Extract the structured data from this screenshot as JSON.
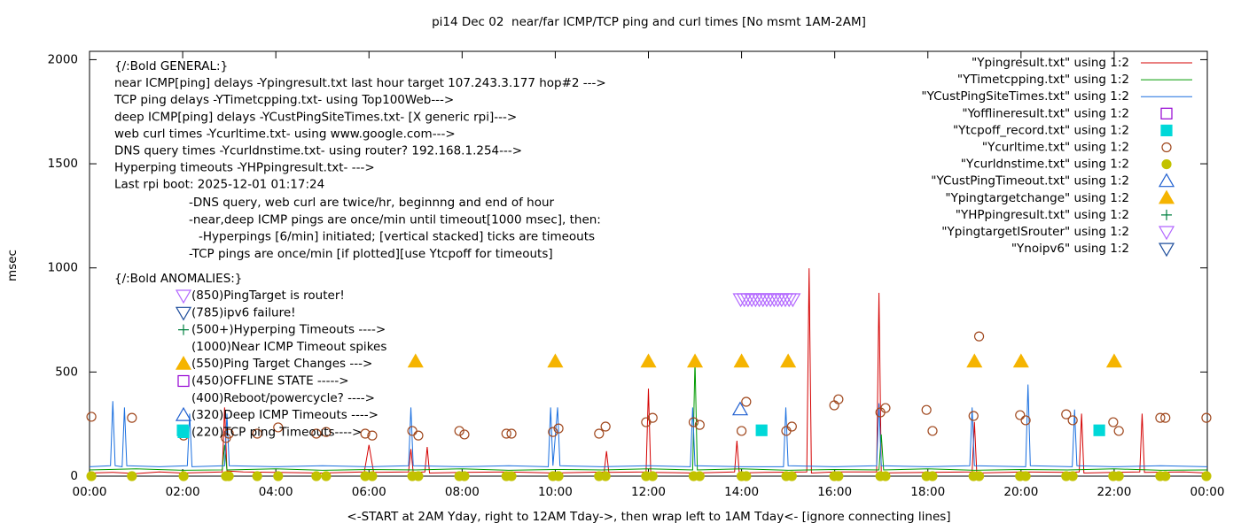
{
  "chart_data": {
    "type": "line",
    "title": "pi14 Dec 02  near/far ICMP/TCP ping and curl times [No msmt 1AM-2AM]",
    "xlabel": "<-START at 2AM Yday, right to 12AM Tday->, then wrap left to 1AM Tday<- [ignore connecting lines]",
    "ylabel": "msec",
    "xlim": [
      0,
      24
    ],
    "ylim": [
      0,
      2040
    ],
    "xticks": [
      {
        "value": 0,
        "label": "00:00"
      },
      {
        "value": 2,
        "label": "02:00"
      },
      {
        "value": 4,
        "label": "04:00"
      },
      {
        "value": 6,
        "label": "06:00"
      },
      {
        "value": 8,
        "label": "08:00"
      },
      {
        "value": 10,
        "label": "10:00"
      },
      {
        "value": 12,
        "label": "12:00"
      },
      {
        "value": 14,
        "label": "14:00"
      },
      {
        "value": 16,
        "label": "16:00"
      },
      {
        "value": 18,
        "label": "18:00"
      },
      {
        "value": 20,
        "label": "20:00"
      },
      {
        "value": 22,
        "label": "22:00"
      },
      {
        "value": 24,
        "label": "00:00"
      }
    ],
    "yticks": [
      0,
      500,
      1000,
      1500,
      2000
    ],
    "grid": false,
    "legend": "top-right",
    "general_notes": [
      "{/:Bold GENERAL:}",
      "near ICMP[ping] delays -Ypingresult.txt last hour target 107.243.3.177 hop#2 --->",
      "TCP ping delays -YTimetcpping.txt- using Top100Web--->",
      "deep ICMP[ping] delays -YCustPingSiteTimes.txt- [X generic rpi]--->",
      "web curl times -Ycurltime.txt- using www.google.com--->",
      "DNS query times -Ycurldnstime.txt- using router? 192.168.1.254--->",
      "Hyperping timeouts -YHPpingresult.txt- --->",
      "Last rpi boot: 2025-12-01 01:17:24"
    ],
    "schedule_notes": [
      "-DNS query, web curl are twice/hr, beginnng and end of hour",
      "-near,deep ICMP pings are once/min until timeout[1000 msec], then:",
      "-Hyperpings [6/min] initiated; [vertical stacked] ticks are timeouts",
      "-TCP pings are once/min [if plotted][use Ytcpoff for timeouts]"
    ],
    "anomalies_heading": "{/:Bold ANOMALIES:}",
    "anomaly_notes": [
      {
        "text": "(850)PingTarget is router!",
        "marker": "triangle-down-open",
        "color": "#b266ff"
      },
      {
        "text": "(785)ipv6 failure!",
        "marker": "triangle-down-open",
        "color": "#1f4e9c"
      },
      {
        "text": "(500+)Hyperping Timeouts ---->",
        "marker": "plus",
        "color": "#008040"
      },
      {
        "text": "(1000)Near ICMP Timeout spikes"
      },
      {
        "text": "(550)Ping Target Changes --->",
        "marker": "triangle-filled",
        "color": "#f5b400"
      },
      {
        "text": "(450)OFFLINE STATE ----->",
        "marker": "square-open",
        "color": "#9400d3"
      },
      {
        "text": "(400)Reboot/powercycle? ---->"
      },
      {
        "text": "(320)Deep ICMP Timeouts ---->",
        "marker": "triangle-open",
        "color": "#1f5fd0"
      },
      {
        "text": "(220)TCP ping Timeouts---->",
        "marker": "square-filled",
        "color": "#00d8d8"
      }
    ],
    "series": [
      {
        "name": "\"Ypingresult.txt\" using 1:2",
        "style": "line",
        "color": "#d40000",
        "x": [
          0,
          0.5,
          1.0,
          1.5,
          2.0,
          2.5,
          2.85,
          2.9,
          2.95,
          3.3,
          4.0,
          5.0,
          5.9,
          6.0,
          6.1,
          6.85,
          6.9,
          6.95,
          7.2,
          7.25,
          7.3,
          8.0,
          9.0,
          10.0,
          11.05,
          11.1,
          11.15,
          11.95,
          12.0,
          12.05,
          13.0,
          13.85,
          13.9,
          13.95,
          14.5,
          15.4,
          15.45,
          15.5,
          16.0,
          16.9,
          16.95,
          17.0,
          18.0,
          18.95,
          19.0,
          19.05,
          20.0,
          21.0,
          21.25,
          21.3,
          21.35,
          22.0,
          22.55,
          22.6,
          22.65,
          23.5,
          24.0
        ],
        "values": [
          15,
          18,
          12,
          20,
          15,
          18,
          20,
          330,
          25,
          20,
          18,
          15,
          20,
          150,
          18,
          20,
          130,
          18,
          20,
          140,
          15,
          18,
          20,
          15,
          20,
          120,
          18,
          20,
          420,
          18,
          15,
          20,
          170,
          15,
          18,
          20,
          998,
          15,
          20,
          20,
          880,
          15,
          18,
          20,
          260,
          15,
          20,
          18,
          20,
          300,
          15,
          18,
          20,
          300,
          18,
          20,
          15
        ]
      },
      {
        "name": "\"YTimetcpping.txt\" using 1:2",
        "style": "line",
        "color": "#009a00",
        "x": [
          0,
          1,
          2,
          2.85,
          2.9,
          2.95,
          4,
          5,
          6,
          7,
          8,
          9,
          10,
          11,
          12,
          12.95,
          13.0,
          13.05,
          14,
          15,
          16,
          16.95,
          17.0,
          17.05,
          18,
          19,
          20,
          21,
          22,
          23,
          24
        ],
        "values": [
          30,
          35,
          28,
          30,
          150,
          30,
          35,
          28,
          32,
          30,
          35,
          28,
          32,
          30,
          35,
          30,
          555,
          30,
          35,
          28,
          32,
          30,
          200,
          30,
          35,
          28,
          32,
          30,
          35,
          28,
          30
        ]
      },
      {
        "name": "\"YCustPingSiteTimes.txt\" using 1:2",
        "style": "line",
        "color": "#1a6fdf",
        "x": [
          0,
          0.45,
          0.5,
          0.55,
          0.7,
          0.75,
          0.8,
          1.5,
          2.1,
          2.15,
          2.2,
          2.9,
          2.95,
          3.0,
          4,
          5,
          6,
          6.85,
          6.9,
          6.95,
          8,
          9,
          9.85,
          9.9,
          9.95,
          10.05,
          10.1,
          11,
          12,
          12.9,
          12.95,
          13.0,
          14,
          14.9,
          14.95,
          15.0,
          16,
          16.9,
          16.95,
          17.0,
          18,
          18.9,
          18.95,
          19.0,
          20.1,
          20.15,
          20.2,
          21.1,
          21.15,
          21.2,
          22,
          23,
          24
        ],
        "values": [
          45,
          50,
          360,
          50,
          45,
          330,
          50,
          45,
          50,
          300,
          45,
          50,
          300,
          50,
          45,
          50,
          45,
          50,
          330,
          50,
          45,
          50,
          45,
          330,
          50,
          330,
          50,
          45,
          50,
          45,
          330,
          50,
          45,
          45,
          330,
          50,
          45,
          50,
          350,
          50,
          45,
          50,
          330,
          50,
          45,
          440,
          50,
          45,
          320,
          50,
          45,
          50,
          45
        ]
      },
      {
        "name": "\"Yofflineresult.txt\" using 1:2",
        "style": "square-open",
        "color": "#9400d3",
        "x": [],
        "values": []
      },
      {
        "name": "\"Ytcpoff_record.txt\" using 1:2",
        "style": "square-filled",
        "color": "#00d8d8",
        "x": [
          2.0,
          14.43,
          21.68
        ],
        "values": [
          220,
          220,
          220
        ]
      },
      {
        "name": "\"Ycurltime.txt\" using 1:2",
        "style": "circle-open",
        "color": "#a0481e",
        "x": [
          0.04,
          0.91,
          2.02,
          2.93,
          2.99,
          3.6,
          4.05,
          4.87,
          5.08,
          5.92,
          6.07,
          6.93,
          7.06,
          7.94,
          8.05,
          8.95,
          9.06,
          9.95,
          10.07,
          10.94,
          11.08,
          11.95,
          12.09,
          12.97,
          13.1,
          14.0,
          14.1,
          14.96,
          15.08,
          15.99,
          16.08,
          16.98,
          17.09,
          17.97,
          18.1,
          18.98,
          19.1,
          19.98,
          20.1,
          20.97,
          21.11,
          21.98,
          22.1,
          22.99,
          23.1,
          23.98
        ],
        "values": [
          285,
          280,
          195,
          183,
          204,
          204,
          234,
          204,
          212,
          204,
          195,
          217,
          195,
          217,
          200,
          204,
          204,
          212,
          229,
          204,
          238,
          259,
          280,
          259,
          246,
          217,
          357,
          217,
          238,
          340,
          369,
          306,
          327,
          318,
          217,
          289,
          671,
          293,
          268,
          297,
          268,
          259,
          217,
          280,
          280,
          280
        ]
      },
      {
        "name": "\"Ycurldnstime.txt\" using 1:2",
        "style": "circle-filled",
        "color": "#c2c200",
        "x": [
          0.04,
          0.91,
          2.02,
          2.93,
          2.99,
          3.6,
          4.05,
          4.87,
          5.08,
          5.92,
          6.07,
          6.93,
          7.06,
          7.94,
          8.05,
          8.95,
          9.06,
          9.95,
          10.07,
          10.94,
          11.08,
          11.95,
          12.09,
          12.97,
          13.1,
          14.0,
          14.1,
          14.96,
          15.08,
          15.99,
          16.08,
          16.98,
          17.09,
          17.97,
          18.1,
          18.98,
          19.1,
          19.98,
          20.1,
          20.97,
          21.11,
          21.98,
          22.1,
          22.99,
          23.1,
          23.98
        ],
        "values": [
          0,
          0,
          0,
          0,
          0,
          0,
          0,
          0,
          0,
          0,
          0,
          0,
          0,
          0,
          0,
          0,
          0,
          0,
          0,
          0,
          0,
          0,
          0,
          0,
          0,
          0,
          0,
          0,
          0,
          0,
          0,
          0,
          0,
          0,
          0,
          0,
          0,
          0,
          0,
          0,
          0,
          0,
          0,
          0,
          0,
          0
        ]
      },
      {
        "name": "\"YCustPingTimeout.txt\" using 1:2",
        "style": "triangle-open",
        "color": "#1f5fd0",
        "x": [
          13.97
        ],
        "values": [
          320
        ]
      },
      {
        "name": "\"Ypingtargetchange\" using 1:2",
        "style": "triangle-filled",
        "color": "#f5b400",
        "x": [
          7,
          10,
          12,
          13,
          14,
          15,
          19,
          20,
          22
        ],
        "values": [
          550,
          550,
          550,
          550,
          550,
          550,
          550,
          550,
          550
        ]
      },
      {
        "name": "\"YHPpingresult.txt\" using 1:2",
        "style": "plus",
        "color": "#008040",
        "x": [],
        "values": []
      },
      {
        "name": "\"YpingtargetISrouter\" using 1:2",
        "style": "triangle-down-open",
        "color": "#b266ff",
        "x": [
          13.98,
          14.06,
          14.14,
          14.22,
          14.3,
          14.38,
          14.46,
          14.54,
          14.62,
          14.7,
          14.78,
          14.86,
          14.94,
          15.02,
          15.1
        ],
        "values": [
          850,
          850,
          850,
          850,
          850,
          850,
          850,
          850,
          850,
          850,
          850,
          850,
          850,
          850,
          850
        ]
      },
      {
        "name": "\"Ynoipv6\" using 1:2",
        "style": "triangle-down-open",
        "color": "#1f4e9c",
        "x": [],
        "values": []
      }
    ]
  }
}
